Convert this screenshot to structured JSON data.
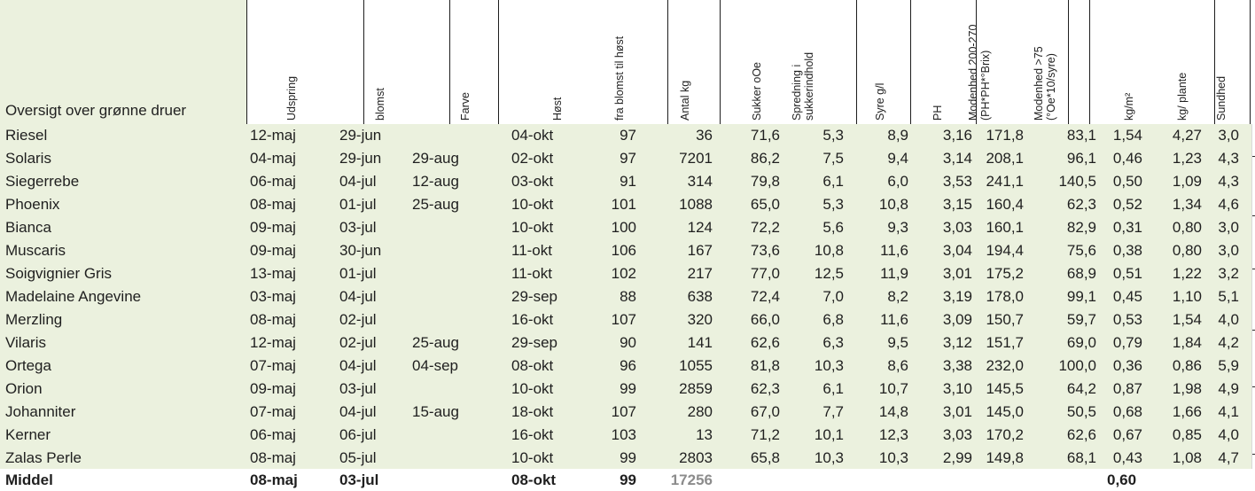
{
  "title": "Oversigt over grønne druer",
  "headers": [
    {
      "lines": [
        "Udspring"
      ]
    },
    {
      "lines": [
        "blomst"
      ]
    },
    {
      "lines": [
        "Farve"
      ]
    },
    {
      "lines": [
        "Høst"
      ]
    },
    {
      "lines": [
        "fra blomst  til høst"
      ]
    },
    {
      "lines": [
        "Antal kg"
      ]
    },
    {
      "lines": [
        "Sukker oOe"
      ]
    },
    {
      "lines": [
        "Spredning i",
        "sukkerindhold"
      ]
    },
    {
      "lines": [
        "Syre g/l"
      ]
    },
    {
      "lines": [
        "PH"
      ]
    },
    {
      "lines": [
        "Modenhed 200-270",
        "(PH*PH*°Brix)"
      ]
    },
    {
      "lines": [
        "Modenhed >75",
        "(°Oe*10/syre)"
      ]
    },
    {
      "lines": [
        "kg/m²"
      ]
    },
    {
      "lines": [
        "kg/ plante"
      ]
    },
    {
      "lines": [
        "Sundhed"
      ]
    }
  ],
  "rows": [
    [
      "Riesel",
      "12-maj",
      "29-jun",
      "",
      "04-okt",
      "97",
      "36",
      "71,6",
      "5,3",
      "8,9",
      "3,16",
      "171,8",
      "83,1",
      "1,54",
      "4,27",
      "3,0"
    ],
    [
      "Solaris",
      "04-maj",
      "29-jun",
      "29-aug",
      "02-okt",
      "97",
      "7201",
      "86,2",
      "7,5",
      "9,4",
      "3,14",
      "208,1",
      "96,1",
      "0,46",
      "1,23",
      "4,3"
    ],
    [
      "Siegerrebe",
      "06-maj",
      "04-jul",
      "12-aug",
      "03-okt",
      "91",
      "314",
      "79,8",
      "6,1",
      "6,0",
      "3,53",
      "241,1",
      "140,5",
      "0,50",
      "1,09",
      "4,3"
    ],
    [
      "Phoenix",
      "08-maj",
      "01-jul",
      "25-aug",
      "10-okt",
      "101",
      "1088",
      "65,0",
      "5,3",
      "10,8",
      "3,15",
      "160,4",
      "62,3",
      "0,52",
      "1,34",
      "4,6"
    ],
    [
      "Bianca",
      "09-maj",
      "03-jul",
      "",
      "10-okt",
      "100",
      "124",
      "72,2",
      "5,6",
      "9,3",
      "3,03",
      "160,1",
      "82,9",
      "0,31",
      "0,80",
      "3,0"
    ],
    [
      "Muscaris",
      "09-maj",
      "30-jun",
      "",
      "11-okt",
      "106",
      "167",
      "73,6",
      "10,8",
      "11,6",
      "3,04",
      "194,4",
      "75,6",
      "0,38",
      "0,80",
      "3,0"
    ],
    [
      "Soigvignier Gris",
      "13-maj",
      "01-jul",
      "",
      "11-okt",
      "102",
      "217",
      "77,0",
      "12,5",
      "11,9",
      "3,01",
      "175,2",
      "68,9",
      "0,51",
      "1,22",
      "3,2"
    ],
    [
      "Madelaine Angevine",
      "03-maj",
      "04-jul",
      "",
      "29-sep",
      "88",
      "638",
      "72,4",
      "7,0",
      "8,2",
      "3,19",
      "178,0",
      "99,1",
      "0,45",
      "1,10",
      "5,1"
    ],
    [
      "Merzling",
      "08-maj",
      "02-jul",
      "",
      "16-okt",
      "107",
      "320",
      "66,0",
      "6,8",
      "11,6",
      "3,09",
      "150,7",
      "59,7",
      "0,53",
      "1,54",
      "4,0"
    ],
    [
      "Vilaris",
      "12-maj",
      "02-jul",
      "25-aug",
      "29-sep",
      "90",
      "141",
      "62,6",
      "6,3",
      "9,5",
      "3,12",
      "151,7",
      "69,0",
      "0,79",
      "1,84",
      "4,2"
    ],
    [
      "Ortega",
      "07-maj",
      "04-jul",
      "04-sep",
      "08-okt",
      "96",
      "1055",
      "81,8",
      "10,3",
      "8,6",
      "3,38",
      "232,0",
      "100,0",
      "0,36",
      "0,86",
      "5,9"
    ],
    [
      "Orion",
      "09-maj",
      "03-jul",
      "",
      "10-okt",
      "99",
      "2859",
      "62,3",
      "6,1",
      "10,7",
      "3,10",
      "145,5",
      "64,2",
      "0,87",
      "1,98",
      "4,9"
    ],
    [
      "Johanniter",
      "07-maj",
      "04-jul",
      "15-aug",
      "18-okt",
      "107",
      "280",
      "67,0",
      "7,7",
      "14,8",
      "3,01",
      "145,0",
      "50,5",
      "0,68",
      "1,66",
      "4,1"
    ],
    [
      "Kerner",
      "06-maj",
      "06-jul",
      "",
      "16-okt",
      "103",
      "13",
      "71,2",
      "10,1",
      "12,3",
      "3,03",
      "170,2",
      "62,6",
      "0,67",
      "0,85",
      "4,0"
    ],
    [
      "Zalas Perle",
      "08-maj",
      "05-jul",
      "",
      "10-okt",
      "99",
      "2803",
      "65,8",
      "10,3",
      "10,3",
      "2,99",
      "149,8",
      "68,1",
      "0,43",
      "1,08",
      "4,7"
    ]
  ],
  "footer": [
    "Middel",
    "08-maj",
    "03-jul",
    "",
    "08-okt",
    "99",
    "17256",
    "",
    "",
    "",
    "",
    "",
    "",
    "0,60",
    "",
    ""
  ]
}
